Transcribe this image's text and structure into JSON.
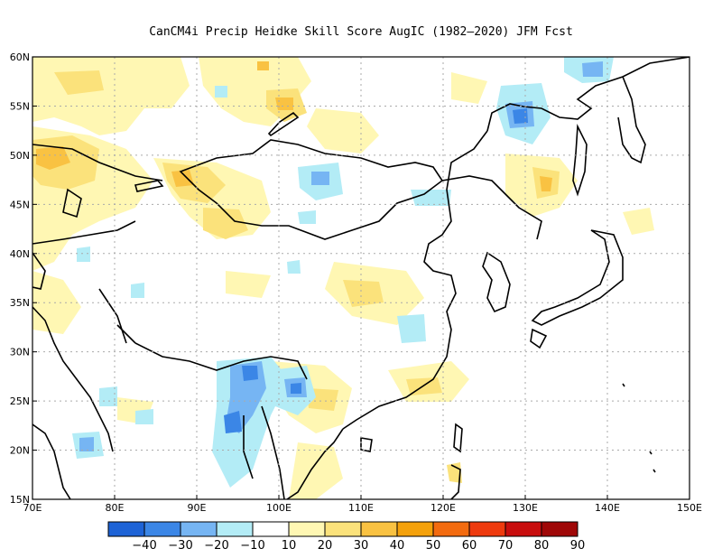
{
  "title": "CanCM4i Precip Heidke Skill Score AugIC (1982—2020) JFM Fcst",
  "map": {
    "lat_labels": [
      "60N",
      "55N",
      "50N",
      "45N",
      "40N",
      "35N",
      "30N",
      "25N",
      "20N",
      "15N"
    ],
    "lon_labels": [
      "70E",
      "80E",
      "90E",
      "100E",
      "110E",
      "120E",
      "130E",
      "140E",
      "150E"
    ],
    "lat_range": [
      15,
      60
    ],
    "lon_range": [
      70,
      150
    ],
    "grid": "dotted"
  },
  "colorbar": {
    "labels": [
      "-40",
      "-30",
      "-20",
      "-10",
      "10",
      "20",
      "30",
      "40",
      "50",
      "60",
      "70",
      "80",
      "90"
    ],
    "colors": [
      "#1e63d6",
      "#3b86e6",
      "#76b5f3",
      "#b3ecf6",
      "#ffffff",
      "#fff7b3",
      "#fbe27b",
      "#f9c242",
      "#f4a10b",
      "#f36b0f",
      "#ee3a0e",
      "#c80d0d",
      "#9f0707"
    ]
  },
  "colors": {
    "land_line": "#000000",
    "frame": "#000000",
    "grid": "#aaaaaa"
  }
}
